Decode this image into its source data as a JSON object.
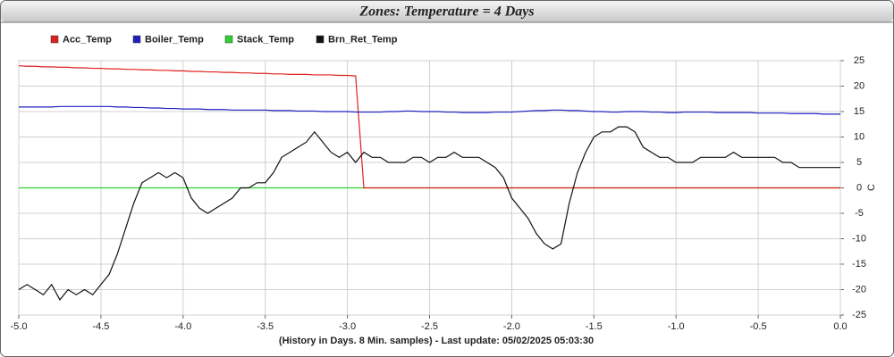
{
  "chart_data": {
    "type": "line",
    "title": "Zones: Temperature = 4 Days",
    "xlabel": "(History in Days. 8 Min. samples) - Last update: 05/02/2025 05:03:30",
    "ylabel": "C",
    "grid": true,
    "xlim": [
      -5,
      0
    ],
    "ylim": [
      -25,
      25
    ],
    "xticks": [
      {
        "value": -5,
        "label": "-5.0"
      },
      -4.5,
      {
        "value": -4,
        "label": "-4.0"
      },
      -3.5,
      {
        "value": -3,
        "label": "-3.0"
      },
      -2.5,
      {
        "value": -2,
        "label": "-2.0"
      },
      -1.5,
      {
        "value": -1,
        "label": "-1.0"
      },
      -0.5,
      {
        "value": 0,
        "label": "0.0"
      }
    ],
    "yticks": [
      25,
      20,
      15,
      10,
      5,
      0,
      -5,
      -10,
      -15,
      -20,
      -25
    ],
    "x": [
      -5,
      -4.95,
      -4.9,
      -4.85,
      -4.8,
      -4.75,
      -4.7,
      -4.65,
      -4.6,
      -4.55,
      -4.5,
      -4.45,
      -4.4,
      -4.35,
      -4.3,
      -4.25,
      -4.2,
      -4.15,
      -4.1,
      -4.05,
      -4,
      -3.95,
      -3.9,
      -3.85,
      -3.8,
      -3.75,
      -3.7,
      -3.65,
      -3.6,
      -3.55,
      -3.5,
      -3.45,
      -3.4,
      -3.35,
      -3.3,
      -3.25,
      -3.2,
      -3.15,
      -3.1,
      -3.05,
      -3,
      -2.95,
      -2.9,
      -2.85,
      -2.8,
      -2.75,
      -2.7,
      -2.65,
      -2.6,
      -2.55,
      -2.5,
      -2.45,
      -2.4,
      -2.35,
      -2.3,
      -2.25,
      -2.2,
      -2.15,
      -2.1,
      -2.05,
      -2,
      -1.95,
      -1.9,
      -1.85,
      -1.8,
      -1.75,
      -1.7,
      -1.65,
      -1.6,
      -1.55,
      -1.5,
      -1.45,
      -1.4,
      -1.35,
      -1.3,
      -1.25,
      -1.2,
      -1.15,
      -1.1,
      -1.05,
      -1,
      -0.95,
      -0.9,
      -0.85,
      -0.8,
      -0.75,
      -0.7,
      -0.65,
      -0.6,
      -0.55,
      -0.5,
      -0.45,
      -0.4,
      -0.35,
      -0.3,
      -0.25,
      -0.2,
      -0.15,
      -0.1,
      -0.05,
      0
    ],
    "series": [
      {
        "name": "Acc_Temp",
        "color": "#e02020",
        "values": [
          24,
          23.9,
          23.9,
          23.8,
          23.8,
          23.7,
          23.7,
          23.6,
          23.6,
          23.5,
          23.5,
          23.4,
          23.4,
          23.3,
          23.3,
          23.2,
          23.2,
          23.1,
          23.1,
          23,
          23,
          22.9,
          22.9,
          22.8,
          22.8,
          22.7,
          22.7,
          22.6,
          22.6,
          22.5,
          22.5,
          22.4,
          22.4,
          22.3,
          22.3,
          22.3,
          22.2,
          22.2,
          22.2,
          22.1,
          22.1,
          22,
          0,
          0,
          0,
          0,
          0,
          0,
          0,
          0,
          0,
          0,
          0,
          0,
          0,
          0,
          0,
          0,
          0,
          0,
          0,
          0,
          0,
          0,
          0,
          0,
          0,
          0,
          0,
          0,
          0,
          0,
          0,
          0,
          0,
          0,
          0,
          0,
          0,
          0,
          0,
          0,
          0,
          0,
          0,
          0,
          0,
          0,
          0,
          0,
          0,
          0,
          0,
          0,
          0,
          0,
          0,
          0,
          0,
          0,
          0
        ]
      },
      {
        "name": "Boiler_Temp",
        "color": "#2020c0",
        "values": [
          15.9,
          15.9,
          15.9,
          15.9,
          15.9,
          16,
          16,
          16,
          16,
          16,
          16,
          16,
          15.9,
          15.9,
          15.8,
          15.8,
          15.7,
          15.7,
          15.6,
          15.6,
          15.5,
          15.5,
          15.5,
          15.4,
          15.4,
          15.4,
          15.3,
          15.3,
          15.3,
          15.3,
          15.3,
          15.2,
          15.2,
          15.2,
          15.1,
          15.1,
          15.1,
          15,
          15,
          15,
          15,
          14.9,
          14.9,
          14.9,
          14.9,
          15,
          15,
          15.1,
          15.1,
          15,
          15,
          15,
          14.9,
          14.9,
          14.8,
          14.8,
          14.8,
          14.8,
          14.9,
          14.9,
          14.9,
          15,
          15.1,
          15.2,
          15.2,
          15.3,
          15.3,
          15.2,
          15.2,
          15.1,
          15,
          15,
          14.9,
          14.9,
          15,
          15,
          15,
          14.9,
          14.9,
          14.8,
          14.8,
          14.9,
          14.9,
          14.9,
          14.9,
          14.8,
          14.8,
          14.8,
          14.8,
          14.8,
          14.7,
          14.7,
          14.7,
          14.7,
          14.6,
          14.6,
          14.6,
          14.6,
          14.5,
          14.5,
          14.5
        ]
      },
      {
        "name": "Stack_Temp",
        "color": "#30d030",
        "values": [
          0,
          0,
          0,
          0,
          0,
          0,
          0,
          0,
          0,
          0,
          0,
          0,
          0,
          0,
          0,
          0,
          0,
          0,
          0,
          0,
          0,
          0,
          0,
          0,
          0,
          0,
          0,
          0,
          0,
          0,
          0,
          0,
          0,
          0,
          0,
          0,
          0,
          0,
          0,
          0,
          0,
          0,
          0,
          0,
          0,
          0,
          0,
          0,
          0,
          0,
          0,
          0,
          0,
          0,
          0,
          0,
          0,
          0,
          0,
          0,
          0,
          0,
          0,
          0,
          0,
          0,
          0,
          0,
          0,
          0,
          0,
          0,
          0,
          0,
          0,
          0,
          0,
          0,
          0,
          0,
          0,
          0,
          0,
          0,
          0,
          0,
          0,
          0,
          0,
          0,
          0,
          0,
          0,
          0,
          0,
          0,
          0,
          0,
          0,
          0,
          0
        ]
      },
      {
        "name": "Brn_Ret_Temp",
        "color": "#111111",
        "values": [
          -20,
          -19,
          -20,
          -21,
          -19,
          -22,
          -20,
          -21,
          -20,
          -21,
          -19,
          -17,
          -13,
          -8,
          -3,
          1,
          2,
          3,
          2,
          3,
          2,
          -2,
          -4,
          -5,
          -4,
          -3,
          -2,
          0,
          0,
          1,
          1,
          3,
          6,
          7,
          8,
          9,
          11,
          9,
          7,
          6,
          7,
          5,
          7,
          6,
          6,
          5,
          5,
          5,
          6,
          6,
          5,
          6,
          6,
          7,
          6,
          6,
          6,
          5,
          4,
          2,
          -2,
          -4,
          -6,
          -9,
          -11,
          -12,
          -11,
          -3,
          3,
          7,
          10,
          11,
          11,
          12,
          12,
          11,
          8,
          7,
          6,
          6,
          5,
          5,
          5,
          6,
          6,
          6,
          6,
          7,
          6,
          6,
          6,
          6,
          6,
          5,
          5,
          4,
          4,
          4,
          4,
          4,
          4
        ]
      }
    ]
  }
}
